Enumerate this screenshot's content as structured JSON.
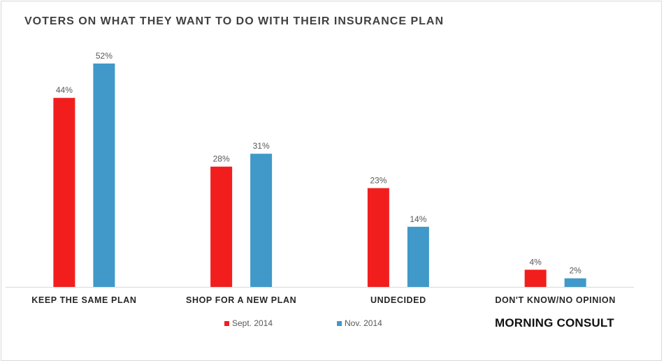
{
  "chart_data": {
    "type": "bar",
    "title": "VOTERS ON WHAT THEY WANT TO DO WITH THEIR INSURANCE PLAN",
    "categories": [
      "KEEP THE SAME PLAN",
      "SHOP FOR A NEW PLAN",
      "UNDECIDED",
      "DON'T KNOW/NO OPINION"
    ],
    "series": [
      {
        "name": "Sept. 2014",
        "values": [
          44,
          28,
          23,
          4
        ],
        "color": "#f21e1e"
      },
      {
        "name": "Nov. 2014",
        "values": [
          52,
          31,
          14,
          2
        ],
        "color": "#4099c9"
      }
    ],
    "value_suffix": "%",
    "ylim": [
      0,
      52
    ],
    "grid": false,
    "legend": "bottom"
  },
  "brand": "MORNING CONSULT"
}
